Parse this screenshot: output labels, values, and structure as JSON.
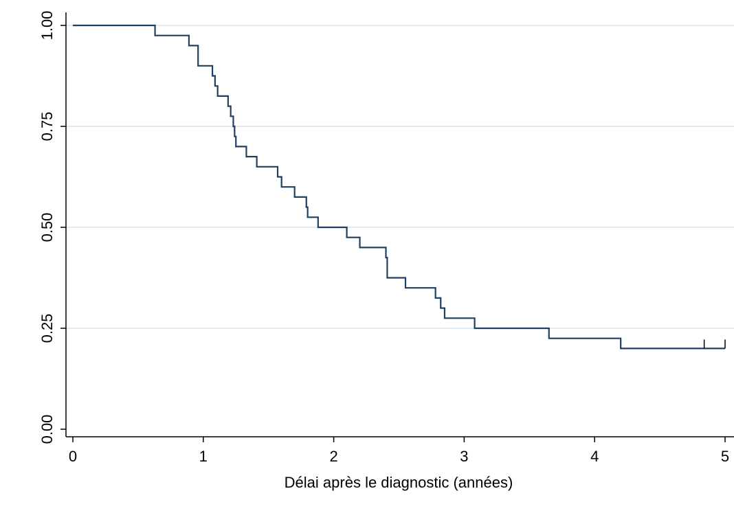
{
  "chart_data": {
    "type": "line",
    "title": "",
    "xlabel": "Délai après le diagnostic (années)",
    "ylabel": "",
    "xlim": [
      0,
      5
    ],
    "ylim": [
      0,
      1
    ],
    "x_ticks": [
      0,
      1,
      2,
      3,
      4,
      5
    ],
    "x_tick_labels": [
      "0",
      "1",
      "2",
      "3",
      "4",
      "5"
    ],
    "y_ticks": [
      0,
      0.25,
      0.5,
      0.75,
      1
    ],
    "y_tick_labels": [
      "0.00",
      "0.25",
      "0.50",
      "0.75",
      "1.00"
    ],
    "grid": "horizontal",
    "legend": "none",
    "colors": {
      "line": "#1f3f63",
      "grid": "#e3ecee",
      "axis": "#000000"
    },
    "series": [
      {
        "step": "post",
        "x": [
          0,
          0.63,
          0.89,
          0.96,
          1.07,
          1.09,
          1.11,
          1.19,
          1.21,
          1.23,
          1.24,
          1.25,
          1.26,
          1.33,
          1.41,
          1.57,
          1.6,
          1.7,
          1.79,
          1.8,
          1.88,
          2.1,
          2.2,
          2.4,
          2.41,
          2.55,
          2.78,
          2.82,
          2.85,
          3.08,
          3.65,
          4.2,
          5.0
        ],
        "y": [
          1.0,
          0.975,
          0.95,
          0.9,
          0.875,
          0.85,
          0.825,
          0.8,
          0.775,
          0.75,
          0.725,
          0.7,
          0.7,
          0.675,
          0.65,
          0.625,
          0.6,
          0.575,
          0.55,
          0.525,
          0.5,
          0.475,
          0.45,
          0.425,
          0.375,
          0.35,
          0.325,
          0.3,
          0.275,
          0.25,
          0.225,
          0.2,
          0.2
        ],
        "censored": [
          4.84,
          5.0
        ]
      }
    ]
  }
}
